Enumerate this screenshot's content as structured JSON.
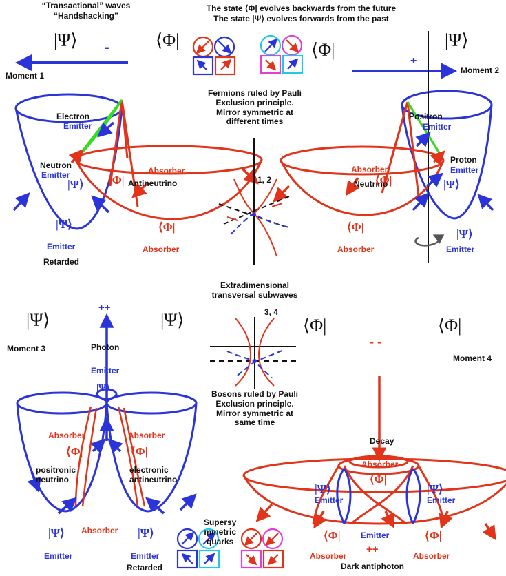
{
  "header": {
    "left_line1": "“Transactional” waves",
    "left_line2": "“Handshacking”",
    "center_line1": "The state ⟨Φ| evolves backwards from the future",
    "center_line2": "The state |Ψ⟩ evolves forwards from the past"
  },
  "symbols": {
    "psi": "|Ψ⟩",
    "phi": "⟨Φ|"
  },
  "signs": {
    "minus": "-",
    "plus": "+",
    "plusplus": "++",
    "minusminus": "- -"
  },
  "moments": {
    "m1": "Moment 1",
    "m2": "Moment 2",
    "m3": "Moment 3",
    "m4": "Moment 4"
  },
  "labels": {
    "electron": "Electron",
    "positron": "Positron",
    "neutron": "Neutron",
    "proton": "Proton",
    "antineutrino": "Antineutrino",
    "neutrino": "Neutrino",
    "emitter": "Emitter",
    "absorber": "Absorber",
    "retarded": "Retarded",
    "photon": "Photon",
    "positronic_neutrino": "positronic\nneutrino",
    "electronic_antineutrino": "electronic\nantineutrino",
    "decay": "Decay",
    "supersymmetric_quarks": "Supersy\nmmetric\nquarks",
    "dark_antiphoton": "Dark antiphoton",
    "fermions_text": "Fermions ruled by Pauli\nExclusion principle.\nMirror symmetric at\ndifferent times",
    "extradimensional_text": "Extradimensional\ntransversal subwaves",
    "bosons_text": "Bosons ruled by Pauli\nExclusion principle.\nMirror symmetric at\nsame time",
    "n12": "1, 2",
    "n34": "3, 4"
  },
  "colors": {
    "blue": "#2a34d8",
    "red": "#e1341a",
    "green": "#33dd22",
    "cyan": "#22c8e8",
    "magenta": "#e040d8",
    "black": "#111111",
    "gray": "#555555"
  }
}
